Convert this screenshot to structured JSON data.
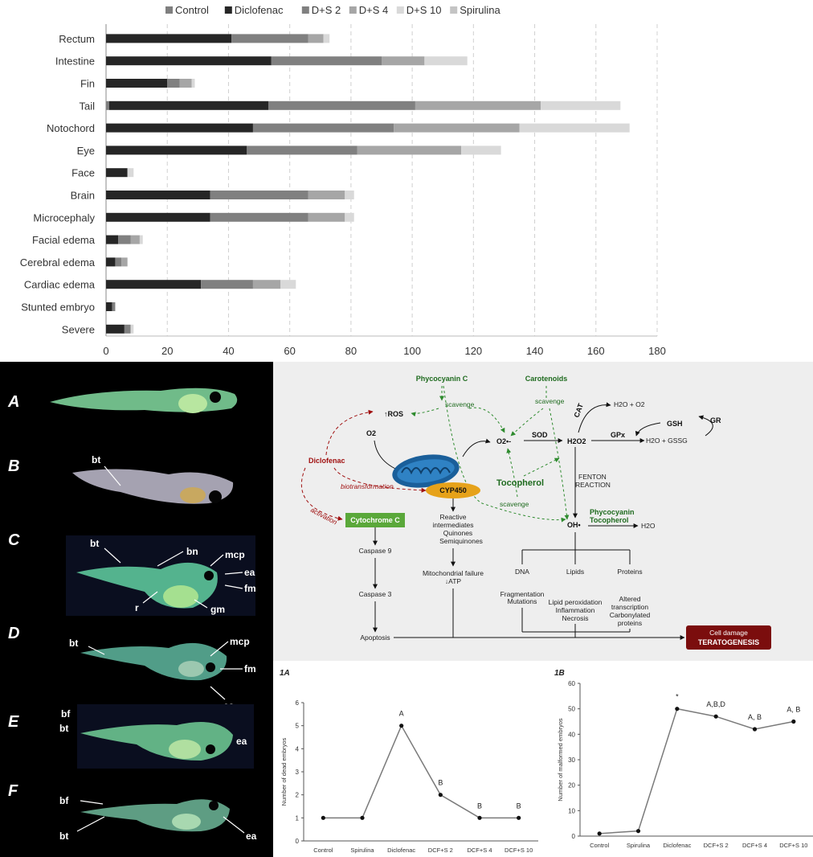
{
  "chart_data": [
    {
      "type": "bar",
      "orientation": "horizontal",
      "stacked": true,
      "categories": [
        "Rectum",
        "Intestine",
        "Fin",
        "Tail",
        "Notochord",
        "Eye",
        "Face",
        "Brain",
        "Microcephaly",
        "Facial edema",
        "Cerebral edema",
        "Cardiac edema",
        "Stunted embryo",
        "Severe"
      ],
      "series": [
        {
          "name": "Control",
          "color": "#7f7f7f",
          "values": [
            0,
            0,
            0,
            1,
            0,
            0,
            0,
            0,
            0,
            0,
            0,
            0,
            0,
            0
          ]
        },
        {
          "name": "Diclofenac",
          "color": "#262626",
          "values": [
            41,
            54,
            20,
            52,
            48,
            46,
            7,
            34,
            34,
            4,
            3,
            31,
            2,
            6
          ]
        },
        {
          "name": "D+S 2",
          "color": "#808080",
          "values": [
            25,
            36,
            4,
            48,
            46,
            36,
            0,
            32,
            32,
            4,
            2,
            17,
            1,
            2
          ]
        },
        {
          "name": "D+S 4",
          "color": "#a6a6a6",
          "values": [
            5,
            14,
            4,
            41,
            41,
            34,
            0,
            12,
            12,
            3,
            2,
            9,
            0,
            0
          ]
        },
        {
          "name": "D+S 10",
          "color": "#d9d9d9",
          "values": [
            2,
            14,
            1,
            26,
            36,
            13,
            2,
            3,
            3,
            1,
            0,
            5,
            0,
            1
          ]
        },
        {
          "name": "Spirulina",
          "color": "#c4c4c4",
          "values": [
            0,
            0,
            0,
            0,
            0,
            0,
            0,
            0,
            0,
            0,
            0,
            0,
            0,
            0
          ]
        }
      ],
      "xlim": [
        0,
        180
      ],
      "xticks": [
        "0",
        "20",
        "40",
        "60",
        "80",
        "100",
        "120",
        "140",
        "160",
        "180"
      ],
      "grid": true,
      "legend": "top"
    },
    {
      "type": "line",
      "panel_label": "1A",
      "categories": [
        "Control",
        "Spirulina",
        "Diclofenac",
        "DCF+S 2",
        "DCF+S 4",
        "DCF+S 10"
      ],
      "values": [
        1,
        1,
        5,
        2,
        1,
        1
      ],
      "point_labels": [
        "",
        "",
        "A",
        "B",
        "B",
        "B"
      ],
      "ylabel": "Number of dead embryos",
      "ylim": [
        0,
        6
      ],
      "yticks": [
        "0",
        "1",
        "2",
        "3",
        "4",
        "5",
        "6"
      ]
    },
    {
      "type": "line",
      "panel_label": "1B",
      "categories": [
        "Control",
        "Spirulina",
        "Diclofenac",
        "DCF+S 2",
        "DCF+S 4",
        "DCF+S 10"
      ],
      "values": [
        1,
        2,
        50,
        47,
        42,
        45
      ],
      "point_labels": [
        "",
        "",
        "*",
        "A,B,D",
        "A, B",
        "A, B"
      ],
      "ylabel": "Number of malformed embryos",
      "ylim": [
        0,
        60
      ],
      "yticks": [
        "0",
        "10",
        "20",
        "30",
        "40",
        "50",
        "60"
      ]
    }
  ],
  "embryos": {
    "labels": [
      "A",
      "B",
      "C",
      "D",
      "E",
      "F"
    ],
    "b": [
      "bt"
    ],
    "c": [
      "bt",
      "bn",
      "mcp",
      "ea",
      "fm",
      "r",
      "gm"
    ],
    "d": [
      "bt",
      "mcp",
      "fm",
      "ea"
    ],
    "e": [
      "bf",
      "bt",
      "ea"
    ],
    "f": [
      "bf",
      "bt",
      "ea"
    ]
  },
  "pathway": {
    "phycocyanin_c": "Phycocyanin C",
    "carotenoids": "Carotenoids",
    "scavenge": "scavenge",
    "ros": "↑ROS",
    "o2": "O2",
    "o2_radical": "O2•-",
    "sod": "SOD",
    "h2o2": "H2O2",
    "cat": "CAT",
    "h2o_o2": "H2O + O2",
    "gsh": "GSH",
    "gr": "GR",
    "gpx": "GPx",
    "h2o_gssg": "H2O + GSSG",
    "diclofenac": "Diclofenac",
    "biotransformation": "biotransformation",
    "activation": "activation",
    "cyp450": "CYP450",
    "tocopherol": "Tocopherol",
    "fenton_1": "FENTON",
    "fenton_2": "REACTION",
    "oh": "OH•",
    "phyco_toco_1": "Phycocyanin",
    "phyco_toco_2": "Tocopherol",
    "h2o": "H2O",
    "cytochrome_c": "Cytochrome C",
    "reactive_1": "Reactive",
    "reactive_2": "intermediates",
    "quinones": "Quinones",
    "semiquinones": "Semiquinones",
    "caspase9": "Caspase 9",
    "caspase3": "Caspase 3",
    "apoptosis": "Apoptosis",
    "mito_failure": "Mitochondrial failure",
    "atp": "↓ATP",
    "dna": "DNA",
    "lipids": "Lipids",
    "proteins": "Proteins",
    "fragmentation": "Fragmentation",
    "mutations": "Mutations",
    "lipid_perox": "Lipid peroxidation",
    "inflammation": "Inflammation",
    "necrosis": "Necrosis",
    "altered": "Altered",
    "transcription": "transcription",
    "carbonylated": "Carbonylated",
    "proteins_2": "proteins",
    "cell_damage": "Cell damage",
    "teratogenesis": "TERATOGENESIS"
  }
}
